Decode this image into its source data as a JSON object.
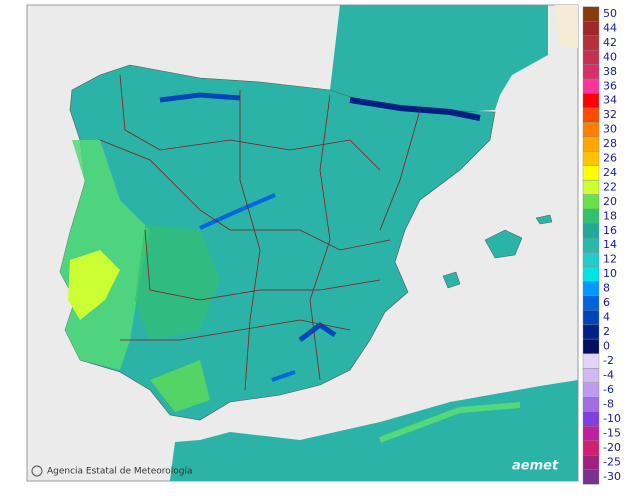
{
  "legend": {
    "positive": [
      {
        "label": 50,
        "color": "#8b3a10"
      },
      {
        "label": 44,
        "color": "#a0282a"
      },
      {
        "label": 42,
        "color": "#b4303c"
      },
      {
        "label": 40,
        "color": "#c43050"
      },
      {
        "label": 38,
        "color": "#d83068"
      },
      {
        "label": 36,
        "color": "#ff3399"
      },
      {
        "label": 34,
        "color": "#ff0000"
      },
      {
        "label": 32,
        "color": "#ff4a00"
      },
      {
        "label": 30,
        "color": "#ff8000"
      },
      {
        "label": 28,
        "color": "#ffa500"
      },
      {
        "label": 26,
        "color": "#ffc400"
      },
      {
        "label": 24,
        "color": "#ffff00"
      },
      {
        "label": 22,
        "color": "#ccff33"
      },
      {
        "label": 20,
        "color": "#66e24a"
      },
      {
        "label": 18,
        "color": "#33c070"
      },
      {
        "label": 16,
        "color": "#22a898"
      },
      {
        "label": 14,
        "color": "#2ab8a8"
      },
      {
        "label": 12,
        "color": "#22cccc"
      },
      {
        "label": 10,
        "color": "#00e4e4"
      },
      {
        "label": 8,
        "color": "#0099ff"
      },
      {
        "label": 6,
        "color": "#0066dd"
      },
      {
        "label": 4,
        "color": "#0044bb"
      },
      {
        "label": 2,
        "color": "#002288"
      },
      {
        "label": 0,
        "color": "#000f60"
      }
    ],
    "negative": [
      {
        "label": -2,
        "color": "#e2d4f4"
      },
      {
        "label": -4,
        "color": "#d0b8f0"
      },
      {
        "label": -6,
        "color": "#bc9cee"
      },
      {
        "label": -8,
        "color": "#9e6ee2"
      },
      {
        "label": -10,
        "color": "#8040e0"
      },
      {
        "label": -15,
        "color": "#c020a0"
      },
      {
        "label": -20,
        "color": "#d02070"
      },
      {
        "label": -25,
        "color": "#a02080"
      },
      {
        "label": -30,
        "color": "#7a3290"
      }
    ]
  },
  "credit": "Agencia Estatal de Meteorología",
  "logo": "aemet"
}
